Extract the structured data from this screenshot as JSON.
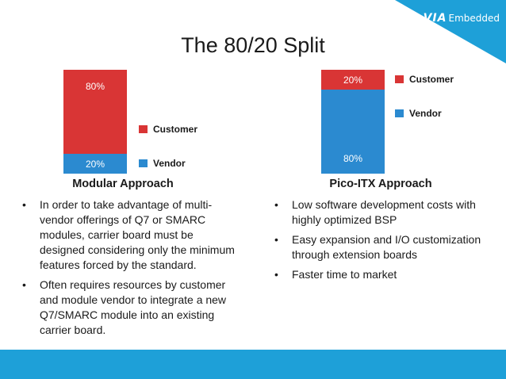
{
  "brand": {
    "logo_via": "VIA",
    "logo_embedded": "Embedded"
  },
  "title": "The 80/20 Split",
  "left": {
    "heading": "Modular Approach",
    "top_pct": "80%",
    "bottom_pct": "20%",
    "legend": {
      "customer": "Customer",
      "vendor": "Vendor"
    },
    "bullets": [
      "In order to take advantage of multi-vendor offerings of Q7 or SMARC modules, carrier board must be designed considering only the minimum features forced by the standard.",
      "Often requires resources by customer and module vendor to integrate a new Q7/SMARC module into an existing carrier board."
    ]
  },
  "right": {
    "heading": "Pico-ITX Approach",
    "top_pct": "20%",
    "bottom_pct": "80%",
    "legend": {
      "customer": "Customer",
      "vendor": "Vendor"
    },
    "bullets": [
      "Low software development costs with highly optimized BSP",
      "Easy expansion and I/O customization through extension boards",
      "Faster time to market"
    ]
  },
  "colors": {
    "customer": "#d93535",
    "vendor": "#2b8ad0",
    "accent": "#1ea0d8"
  }
}
